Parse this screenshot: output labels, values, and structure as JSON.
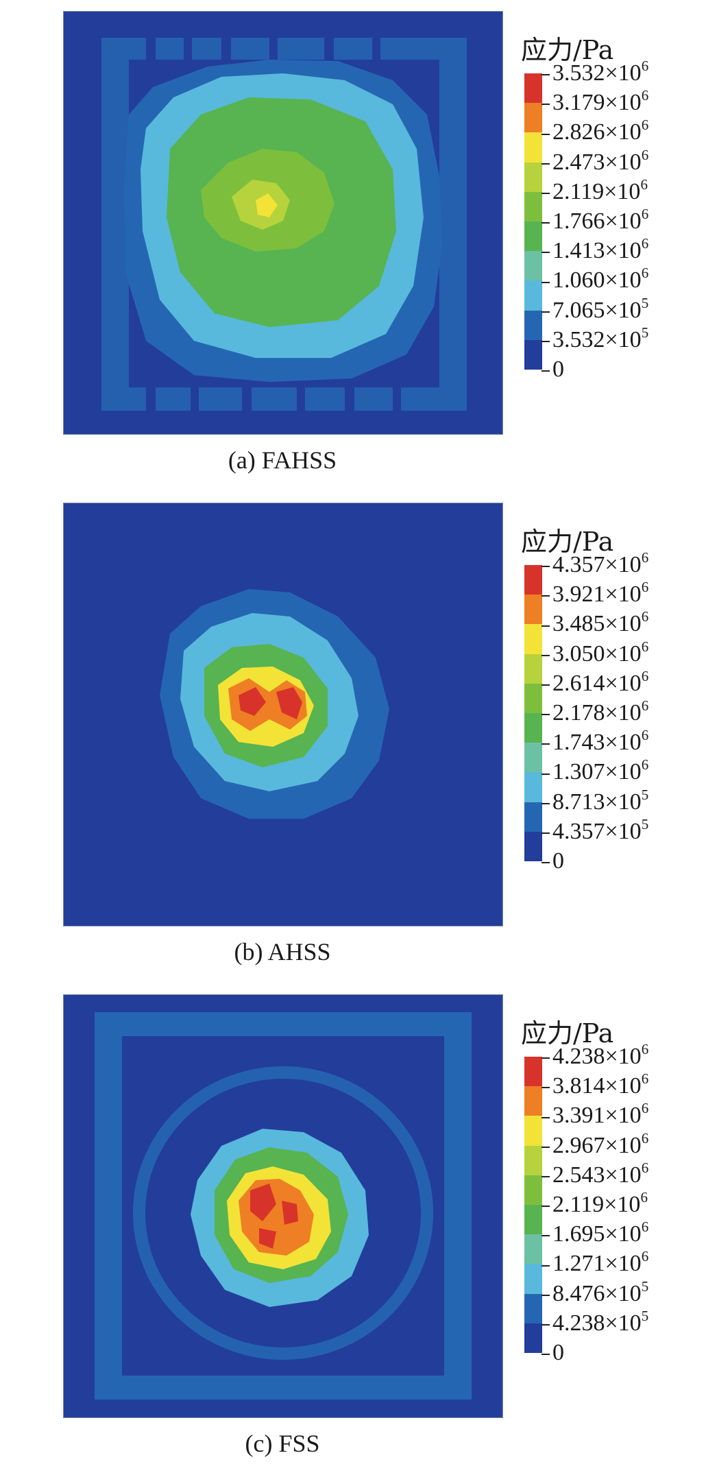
{
  "colors": [
    "#233d9b",
    "#2566b2",
    "#58b9dc",
    "#6cc1a5",
    "#58b351",
    "#7dbf3d",
    "#b6d23c",
    "#f3e337",
    "#ee7f24",
    "#d8332a"
  ],
  "panels": [
    {
      "id": "fahss",
      "caption": "(a) FAHSS",
      "legend_title": "应力/Pa",
      "ticks": [
        {
          "m": "3.532",
          "x": "×10",
          "e": "6"
        },
        {
          "m": "3.179",
          "x": "×10",
          "e": "6"
        },
        {
          "m": "2.826",
          "x": "×10",
          "e": "6"
        },
        {
          "m": "2.473",
          "x": "×10",
          "e": "6"
        },
        {
          "m": "2.119",
          "x": "×10",
          "e": "6"
        },
        {
          "m": "1.766",
          "x": "×10",
          "e": "6"
        },
        {
          "m": "1.413",
          "x": "×10",
          "e": "6"
        },
        {
          "m": "1.060",
          "x": "×10",
          "e": "6"
        },
        {
          "m": "7.065",
          "x": "×10",
          "e": "5"
        },
        {
          "m": "3.532",
          "x": "×10",
          "e": "5"
        },
        {
          "m": "0",
          "x": "",
          "e": ""
        }
      ]
    },
    {
      "id": "ahss",
      "caption": "(b) AHSS",
      "legend_title": "应力/Pa",
      "ticks": [
        {
          "m": "4.357",
          "x": "×10",
          "e": "6"
        },
        {
          "m": "3.921",
          "x": "×10",
          "e": "6"
        },
        {
          "m": "3.485",
          "x": "×10",
          "e": "6"
        },
        {
          "m": "3.050",
          "x": "×10",
          "e": "6"
        },
        {
          "m": "2.614",
          "x": "×10",
          "e": "6"
        },
        {
          "m": "2.178",
          "x": "×10",
          "e": "6"
        },
        {
          "m": "1.743",
          "x": "×10",
          "e": "6"
        },
        {
          "m": "1.307",
          "x": "×10",
          "e": "6"
        },
        {
          "m": "8.713",
          "x": "×10",
          "e": "5"
        },
        {
          "m": "4.357",
          "x": "×10",
          "e": "5"
        },
        {
          "m": "0",
          "x": "",
          "e": ""
        }
      ]
    },
    {
      "id": "fss",
      "caption": "(c) FSS",
      "legend_title": "应力/Pa",
      "ticks": [
        {
          "m": "4.238",
          "x": "×10",
          "e": "6"
        },
        {
          "m": "3.814",
          "x": "×10",
          "e": "6"
        },
        {
          "m": "3.391",
          "x": "×10",
          "e": "6"
        },
        {
          "m": "2.967",
          "x": "×10",
          "e": "6"
        },
        {
          "m": "2.543",
          "x": "×10",
          "e": "6"
        },
        {
          "m": "2.119",
          "x": "×10",
          "e": "6"
        },
        {
          "m": "1.695",
          "x": "×10",
          "e": "6"
        },
        {
          "m": "1.271",
          "x": "×10",
          "e": "6"
        },
        {
          "m": "8.476",
          "x": "×10",
          "e": "5"
        },
        {
          "m": "4.238",
          "x": "×10",
          "e": "5"
        },
        {
          "m": "0",
          "x": "",
          "e": ""
        }
      ]
    }
  ],
  "chart_data": [
    {
      "type": "heatmap",
      "caption": "(a) FAHSS",
      "legend_title": "应力/Pa",
      "colorbar_levels": [
        0,
        353200,
        706500,
        1060000,
        1413000,
        1766000,
        2119000,
        2473000,
        2826000,
        3179000,
        3532000
      ],
      "max": 3532000
    },
    {
      "type": "heatmap",
      "caption": "(b) AHSS",
      "legend_title": "应力/Pa",
      "colorbar_levels": [
        0,
        435700,
        871300,
        1307000,
        1743000,
        2178000,
        2614000,
        3050000,
        3485000,
        3921000,
        4357000
      ],
      "max": 4357000
    },
    {
      "type": "heatmap",
      "caption": "(c) FSS",
      "legend_title": "应力/Pa",
      "colorbar_levels": [
        0,
        423800,
        847600,
        1271000,
        1695000,
        2119000,
        2543000,
        2967000,
        3391000,
        3814000,
        4238000
      ],
      "max": 4238000
    }
  ]
}
